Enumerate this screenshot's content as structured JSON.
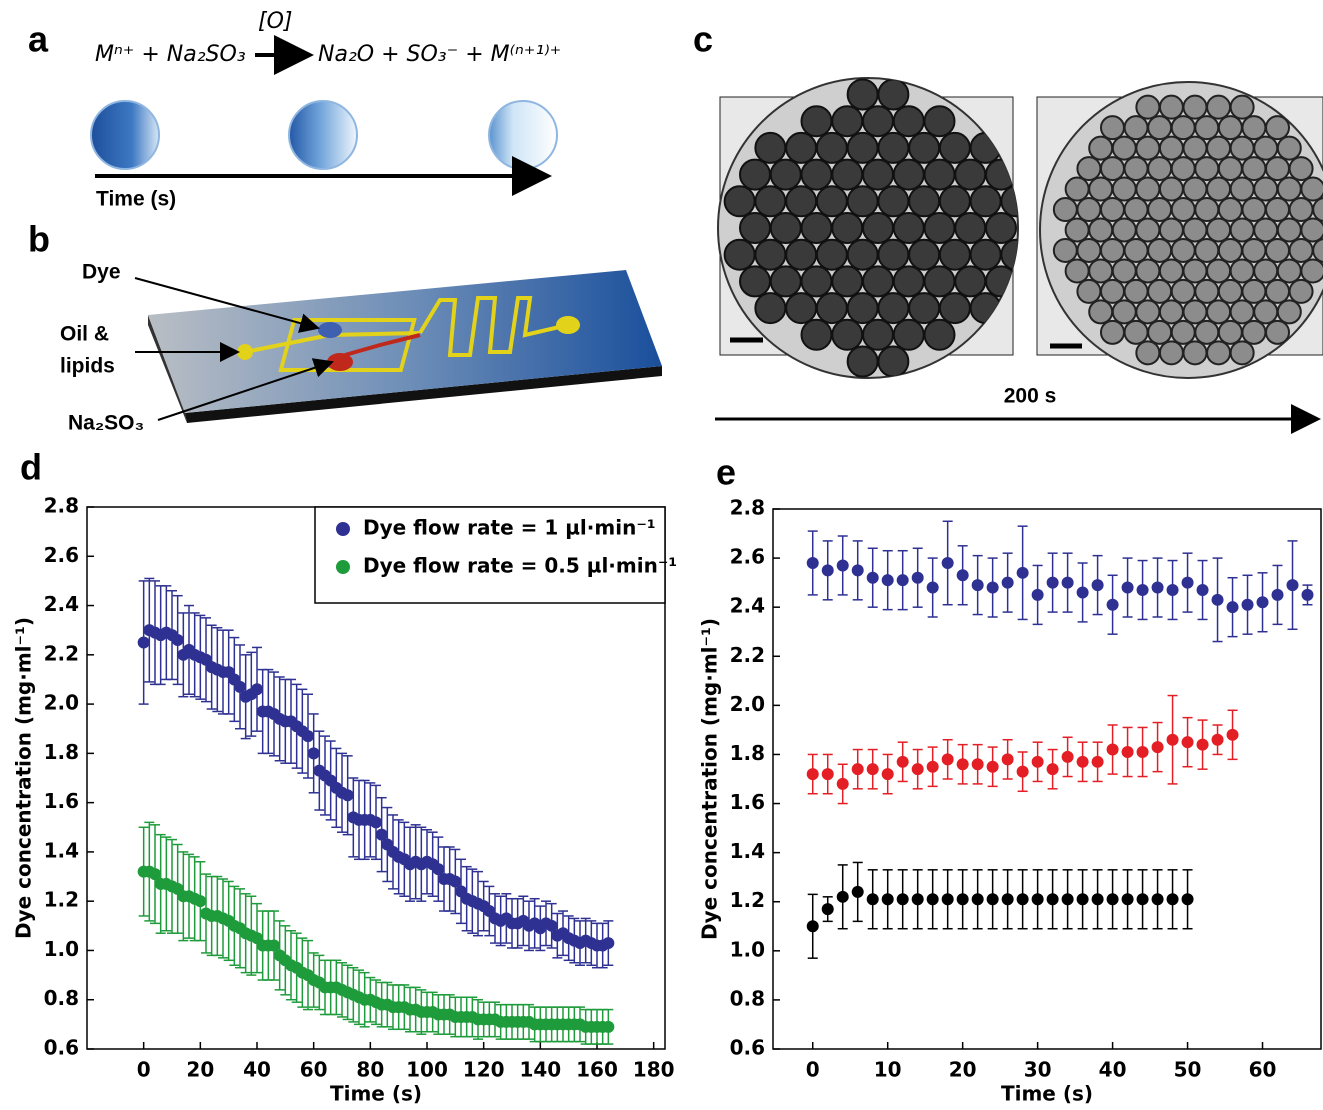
{
  "panels": {
    "a": "a",
    "b": "b",
    "c": "c",
    "d": "d",
    "e": "e"
  },
  "equation": {
    "left": "Mⁿ⁺ + Na₂SO₃",
    "over": "[O]",
    "right": "Na₂O + SO₃⁻ + M⁽ⁿ⁺¹⁾⁺"
  },
  "timeline_label": "Time (s)",
  "chip_labels": {
    "dye": "Dye",
    "oil_1": "Oil &",
    "oil_2": "lipids",
    "sulfite": "Na₂SO₃"
  },
  "micrograph_time": "200 s",
  "chart_data": [
    {
      "type": "scatter",
      "xlabel": "Time (s)",
      "ylabel": "Dye concentration (mg·ml⁻¹)",
      "xlim": [
        -20,
        184
      ],
      "xticks": [
        0,
        20,
        40,
        60,
        80,
        100,
        120,
        140,
        160,
        180
      ],
      "ylim": [
        0.6,
        2.8
      ],
      "yticks": [
        0.6,
        0.8,
        {
          "value": 1,
          "label": "1.0"
        },
        1.2,
        1.4,
        1.6,
        1.8,
        {
          "value": 2,
          "label": "2.0"
        },
        2.2,
        2.4,
        2.6,
        2.8
      ],
      "legend": "upper right",
      "x": [
        0,
        2,
        4,
        6,
        8,
        10,
        12,
        14,
        16,
        18,
        20,
        22,
        24,
        26,
        28,
        30,
        32,
        34,
        36,
        38,
        40,
        42,
        44,
        46,
        48,
        50,
        52,
        54,
        56,
        58,
        60,
        62,
        64,
        66,
        68,
        70,
        72,
        74,
        76,
        78,
        80,
        82,
        84,
        86,
        88,
        90,
        92,
        94,
        96,
        98,
        100,
        102,
        104,
        106,
        108,
        110,
        112,
        114,
        116,
        118,
        120,
        122,
        124,
        126,
        128,
        130,
        132,
        134,
        136,
        138,
        140,
        142,
        144,
        146,
        148,
        150,
        152,
        154,
        156,
        158,
        160,
        162,
        164
      ],
      "series": [
        {
          "name": "Dye flow rate = 1 µl·min⁻¹",
          "color": "#2e3192",
          "values": [
            2.25,
            2.3,
            2.29,
            2.28,
            2.29,
            2.28,
            2.26,
            2.2,
            2.22,
            2.2,
            2.19,
            2.18,
            2.15,
            2.14,
            2.13,
            2.13,
            2.1,
            2.07,
            2.03,
            2.04,
            2.06,
            1.97,
            1.97,
            1.96,
            1.94,
            1.93,
            1.93,
            1.91,
            1.89,
            1.87,
            1.8,
            1.73,
            1.71,
            1.69,
            1.66,
            1.64,
            1.63,
            1.54,
            1.53,
            1.53,
            1.53,
            1.52,
            1.47,
            1.43,
            1.4,
            1.38,
            1.37,
            1.35,
            1.36,
            1.35,
            1.36,
            1.35,
            1.33,
            1.29,
            1.29,
            1.28,
            1.24,
            1.21,
            1.2,
            1.19,
            1.18,
            1.16,
            1.13,
            1.12,
            1.13,
            1.11,
            1.11,
            1.12,
            1.1,
            1.11,
            1.09,
            1.11,
            1.1,
            1.06,
            1.07,
            1.05,
            1.04,
            1.03,
            1.04,
            1.03,
            1.02,
            1.02,
            1.03
          ],
          "errors": [
            0.25,
            0.21,
            0.21,
            0.2,
            0.19,
            0.18,
            0.18,
            0.17,
            0.18,
            0.17,
            0.17,
            0.17,
            0.17,
            0.17,
            0.17,
            0.17,
            0.17,
            0.17,
            0.17,
            0.17,
            0.17,
            0.17,
            0.17,
            0.17,
            0.17,
            0.17,
            0.17,
            0.17,
            0.17,
            0.17,
            0.16,
            0.16,
            0.16,
            0.16,
            0.16,
            0.16,
            0.16,
            0.16,
            0.16,
            0.16,
            0.15,
            0.15,
            0.15,
            0.15,
            0.15,
            0.15,
            0.15,
            0.15,
            0.15,
            0.15,
            0.13,
            0.13,
            0.13,
            0.13,
            0.13,
            0.13,
            0.13,
            0.13,
            0.13,
            0.13,
            0.1,
            0.1,
            0.1,
            0.1,
            0.1,
            0.1,
            0.1,
            0.1,
            0.1,
            0.1,
            0.09,
            0.09,
            0.09,
            0.09,
            0.09,
            0.09,
            0.09,
            0.09,
            0.09,
            0.09,
            0.09,
            0.09,
            0.09
          ]
        },
        {
          "name": "Dye flow rate = 0.5 µl·min⁻¹",
          "color": "#1e9b3a",
          "values": [
            1.32,
            1.32,
            1.31,
            1.27,
            1.27,
            1.26,
            1.25,
            1.22,
            1.22,
            1.21,
            1.2,
            1.15,
            1.14,
            1.14,
            1.13,
            1.12,
            1.1,
            1.09,
            1.07,
            1.06,
            1.05,
            1.02,
            1.02,
            1.02,
            0.98,
            0.96,
            0.94,
            0.93,
            0.91,
            0.9,
            0.88,
            0.87,
            0.85,
            0.85,
            0.85,
            0.84,
            0.83,
            0.82,
            0.81,
            0.8,
            0.8,
            0.79,
            0.78,
            0.78,
            0.77,
            0.77,
            0.77,
            0.76,
            0.76,
            0.75,
            0.75,
            0.75,
            0.74,
            0.74,
            0.74,
            0.73,
            0.73,
            0.73,
            0.73,
            0.72,
            0.72,
            0.72,
            0.72,
            0.71,
            0.71,
            0.71,
            0.71,
            0.71,
            0.71,
            0.7,
            0.7,
            0.7,
            0.7,
            0.7,
            0.7,
            0.7,
            0.7,
            0.7,
            0.69,
            0.69,
            0.69,
            0.69,
            0.69
          ],
          "errors": [
            0.18,
            0.2,
            0.2,
            0.2,
            0.19,
            0.19,
            0.18,
            0.18,
            0.17,
            0.17,
            0.16,
            0.16,
            0.16,
            0.16,
            0.16,
            0.16,
            0.16,
            0.16,
            0.16,
            0.16,
            0.14,
            0.14,
            0.14,
            0.14,
            0.14,
            0.14,
            0.14,
            0.14,
            0.14,
            0.14,
            0.11,
            0.11,
            0.11,
            0.11,
            0.11,
            0.11,
            0.11,
            0.11,
            0.11,
            0.11,
            0.09,
            0.09,
            0.09,
            0.09,
            0.09,
            0.09,
            0.09,
            0.09,
            0.09,
            0.09,
            0.08,
            0.08,
            0.08,
            0.08,
            0.08,
            0.08,
            0.08,
            0.08,
            0.08,
            0.08,
            0.07,
            0.07,
            0.07,
            0.07,
            0.07,
            0.07,
            0.07,
            0.07,
            0.07,
            0.07,
            0.07,
            0.07,
            0.07,
            0.07,
            0.07,
            0.07,
            0.07,
            0.07,
            0.07,
            0.07,
            0.07,
            0.07,
            0.07
          ]
        }
      ]
    },
    {
      "type": "scatter",
      "xlabel": "Time (s)",
      "ylabel": "Dye concentration (mg·ml⁻¹)",
      "xlim": [
        -5.3,
        67.8
      ],
      "xticks": [
        0,
        10,
        20,
        30,
        40,
        50,
        60
      ],
      "ylim": [
        0.6,
        2.8
      ],
      "yticks": [
        0.6,
        0.8,
        {
          "value": 1,
          "label": "1.0"
        },
        1.2,
        1.4,
        1.6,
        1.8,
        {
          "value": 2,
          "label": "2.0"
        },
        2.2,
        2.4,
        2.6,
        2.8
      ],
      "x": [
        0,
        2,
        4,
        6,
        8,
        10,
        12,
        14,
        16,
        18,
        20,
        22,
        24,
        26,
        28,
        30,
        32,
        34,
        36,
        38,
        40,
        42,
        44,
        46,
        48,
        50,
        52,
        54,
        56,
        58,
        60,
        62,
        64,
        66
      ],
      "series": [
        {
          "color": "#2e3192",
          "values": [
            2.58,
            2.55,
            2.57,
            2.55,
            2.52,
            2.51,
            2.51,
            2.52,
            2.48,
            2.58,
            2.53,
            2.49,
            2.48,
            2.5,
            2.54,
            2.45,
            2.5,
            2.5,
            2.46,
            2.49,
            2.41,
            2.48,
            2.47,
            2.48,
            2.47,
            2.5,
            2.47,
            2.43,
            2.4,
            2.41,
            2.42,
            2.45,
            2.49,
            2.45
          ],
          "errors": [
            0.13,
            0.12,
            0.12,
            0.12,
            0.12,
            0.12,
            0.12,
            0.12,
            0.12,
            0.17,
            0.12,
            0.12,
            0.12,
            0.12,
            0.19,
            0.12,
            0.12,
            0.12,
            0.12,
            0.12,
            0.12,
            0.12,
            0.12,
            0.12,
            0.12,
            0.12,
            0.12,
            0.17,
            0.12,
            0.12,
            0.12,
            0.12,
            0.18,
            0.04
          ]
        },
        {
          "color": "#e31e24",
          "values": [
            1.72,
            1.72,
            1.68,
            1.74,
            1.74,
            1.72,
            1.77,
            1.74,
            1.75,
            1.78,
            1.76,
            1.76,
            1.75,
            1.78,
            1.73,
            1.77,
            1.74,
            1.79,
            1.77,
            1.77,
            1.82,
            1.81,
            1.81,
            1.83,
            1.86,
            1.85,
            1.84,
            1.86,
            1.88,
            null,
            null,
            null,
            null,
            null
          ],
          "errors": [
            0.08,
            0.08,
            0.08,
            0.08,
            0.08,
            0.08,
            0.08,
            0.08,
            0.08,
            0.08,
            0.08,
            0.08,
            0.08,
            0.08,
            0.08,
            0.08,
            0.08,
            0.08,
            0.08,
            0.08,
            0.1,
            0.1,
            0.1,
            0.1,
            0.18,
            0.1,
            0.1,
            0.06,
            0.1,
            null,
            null,
            null,
            null,
            null
          ]
        },
        {
          "color": "#000000",
          "values": [
            1.1,
            1.17,
            1.22,
            1.24,
            1.21,
            1.21,
            1.21,
            1.21,
            1.21,
            1.21,
            1.21,
            1.21,
            1.21,
            1.21,
            1.21,
            1.21,
            1.21,
            1.21,
            1.21,
            1.21,
            1.21,
            1.21,
            1.21,
            1.21,
            1.21,
            1.21,
            null,
            null,
            null,
            null,
            null,
            null,
            null,
            null
          ],
          "errors": [
            0.13,
            0.05,
            0.13,
            0.12,
            0.12,
            0.12,
            0.12,
            0.12,
            0.12,
            0.12,
            0.12,
            0.12,
            0.12,
            0.12,
            0.12,
            0.12,
            0.12,
            0.12,
            0.12,
            0.12,
            0.12,
            0.12,
            0.12,
            0.12,
            0.12,
            0.12,
            null,
            null,
            null,
            null,
            null,
            null,
            null,
            null
          ]
        }
      ]
    }
  ]
}
